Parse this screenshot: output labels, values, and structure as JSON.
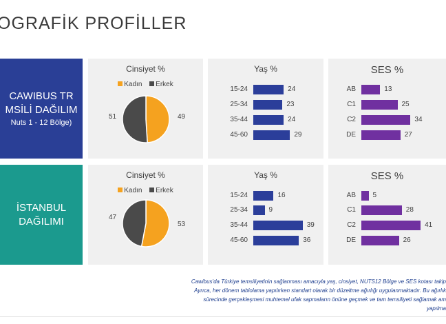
{
  "title": "OGRAFİK PROFİLLER",
  "colors": {
    "female": "#f5a21f",
    "male": "#4a4a4a",
    "age_bar": "#2b3e9a",
    "ses_bar": "#7030a0",
    "row1_bg": "#2a3f96",
    "row2_bg": "#1b9a8e"
  },
  "rows": [
    {
      "label_lines": [
        "CAWIBUS TR",
        "MSİLİ DAĞILIM",
        "Nuts 1 - 12 Bölge)"
      ],
      "gender": {
        "title": "Cinsiyet %",
        "legend": [
          "Kadın",
          "Erkek"
        ],
        "female": 49,
        "male": 51
      },
      "age": {
        "title": "Yaş %",
        "items": [
          {
            "label": "15-24",
            "value": 24
          },
          {
            "label": "25-34",
            "value": 23
          },
          {
            "label": "35-44",
            "value": 24
          },
          {
            "label": "45-60",
            "value": 29
          }
        ]
      },
      "ses": {
        "title": "SES %",
        "items": [
          {
            "label": "AB",
            "value": 13
          },
          {
            "label": "C1",
            "value": 25
          },
          {
            "label": "C2",
            "value": 34
          },
          {
            "label": "DE",
            "value": 27
          }
        ]
      }
    },
    {
      "label_lines": [
        "İSTANBUL",
        "DAĞILIMI"
      ],
      "gender": {
        "title": "Cinsiyet %",
        "legend": [
          "Kadın",
          "Erkek"
        ],
        "female": 53,
        "male": 47
      },
      "age": {
        "title": "Yaş %",
        "items": [
          {
            "label": "15-24",
            "value": 16
          },
          {
            "label": "25-34",
            "value": 9
          },
          {
            "label": "35-44",
            "value": 39
          },
          {
            "label": "45-60",
            "value": 36
          }
        ]
      },
      "ses": {
        "title": "SES %",
        "items": [
          {
            "label": "AB",
            "value": 5
          },
          {
            "label": "C1",
            "value": 28
          },
          {
            "label": "C2",
            "value": 41
          },
          {
            "label": "DE",
            "value": 26
          }
        ]
      }
    }
  ],
  "footer_lines": [
    "Cawibus'da Türkiye temsiliyetinin sağlanması amacıyla  yaş, cinsiyet, NUTS12 Bölge ve SES kotası takip",
    "Ayrıca, her dönem tablolama yapılırken standart olarak bir düzeltme  ağırlığı uygulanmaktadır. Bu ağırlık",
    "sürecinde gerçekleşmesi muhtemel ufak sapmaların önüne geçmek ve tam temsiliyeti sağlamak am",
    "yapılma"
  ],
  "chart_data": [
    {
      "type": "pie",
      "title": "Cinsiyet %",
      "labels": [
        "Kadın",
        "Erkek"
      ],
      "values": [
        49,
        51
      ]
    },
    {
      "type": "bar",
      "title": "Yaş %",
      "categories": [
        "15-24",
        "25-34",
        "35-44",
        "45-60"
      ],
      "values": [
        24,
        23,
        24,
        29
      ]
    },
    {
      "type": "bar",
      "title": "SES %",
      "categories": [
        "AB",
        "C1",
        "C2",
        "DE"
      ],
      "values": [
        13,
        25,
        34,
        27
      ]
    },
    {
      "type": "pie",
      "title": "Cinsiyet %",
      "labels": [
        "Kadın",
        "Erkek"
      ],
      "values": [
        53,
        47
      ]
    },
    {
      "type": "bar",
      "title": "Yaş %",
      "categories": [
        "15-24",
        "25-34",
        "35-44",
        "45-60"
      ],
      "values": [
        16,
        9,
        39,
        36
      ]
    },
    {
      "type": "bar",
      "title": "SES %",
      "categories": [
        "AB",
        "C1",
        "C2",
        "DE"
      ],
      "values": [
        5,
        28,
        41,
        26
      ]
    }
  ]
}
